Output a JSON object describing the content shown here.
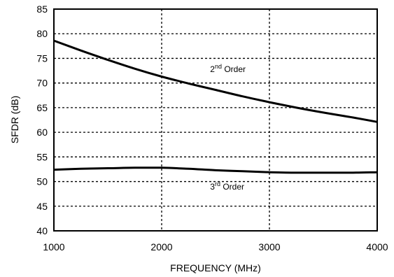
{
  "chart_data": {
    "type": "line",
    "xlabel": "FREQUENCY (MHz)",
    "ylabel": "SFDR (dB)",
    "xlim": [
      1000,
      4000
    ],
    "ylim": [
      40,
      85
    ],
    "xticks": [
      1000,
      2000,
      3000,
      4000
    ],
    "yticks": [
      40,
      45,
      50,
      55,
      60,
      65,
      70,
      75,
      80,
      85
    ],
    "grid": true,
    "series": [
      {
        "name": "2nd Order",
        "x": [
          1000,
          1250,
          1500,
          1750,
          2000,
          2250,
          2500,
          2750,
          3000,
          3250,
          3500,
          3750,
          4000
        ],
        "y": [
          78.6,
          76.6,
          74.7,
          72.9,
          71.3,
          69.9,
          68.6,
          67.3,
          66.1,
          65.0,
          64.0,
          63.1,
          62.1
        ]
      },
      {
        "name": "3rd Order",
        "x": [
          1000,
          1250,
          1500,
          1750,
          2000,
          2250,
          2500,
          2750,
          3000,
          3250,
          3500,
          3750,
          4000
        ],
        "y": [
          52.4,
          52.6,
          52.7,
          52.8,
          52.8,
          52.6,
          52.3,
          52.1,
          51.9,
          51.8,
          51.8,
          51.8,
          51.9
        ]
      }
    ],
    "annotations": [
      {
        "base": "2",
        "sup": "nd",
        "rest": " Order",
        "x": 2450,
        "y": 72.2
      },
      {
        "base": "3",
        "sup": "rd",
        "rest": " Order",
        "x": 2450,
        "y": 48.4
      }
    ]
  }
}
